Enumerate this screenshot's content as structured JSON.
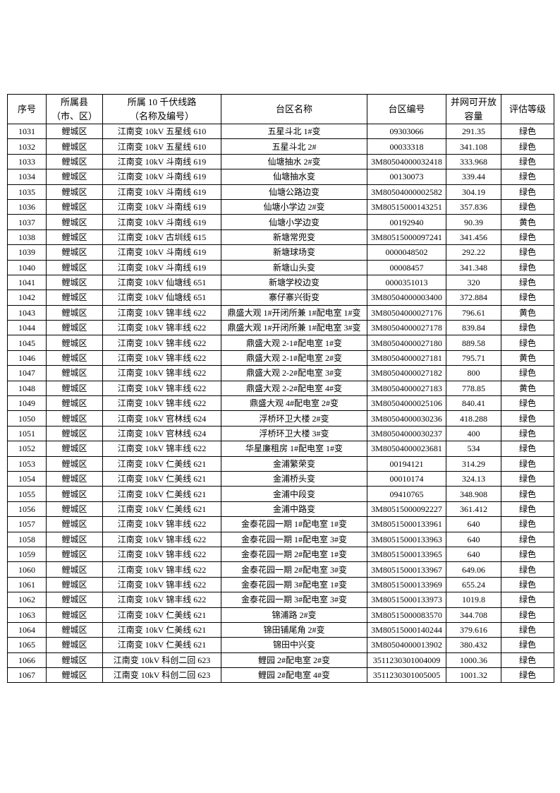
{
  "table": {
    "header": [
      [
        "序号"
      ],
      [
        "所属县",
        "（市、区）"
      ],
      [
        "所属 10 千伏线路",
        "（名称及编号）"
      ],
      [
        "台区名称"
      ],
      [
        "台区编号"
      ],
      [
        "并网可开放",
        "容量"
      ],
      [
        "评估等级"
      ]
    ],
    "rows": [
      [
        "1031",
        "鲤城区",
        "江南变 10kV 五星线 610",
        "五星斗北 1#变",
        "09303066",
        "291.35",
        "绿色"
      ],
      [
        "1032",
        "鲤城区",
        "江南变 10kV 五星线 610",
        "五星斗北 2#",
        "00033318",
        "341.108",
        "绿色"
      ],
      [
        "1033",
        "鲤城区",
        "江南变 10kV 斗南线 619",
        "仙塘抽水 2#变",
        "3M80504000032418",
        "333.968",
        "绿色"
      ],
      [
        "1034",
        "鲤城区",
        "江南变 10kV 斗南线 619",
        "仙塘抽水变",
        "00130073",
        "339.44",
        "绿色"
      ],
      [
        "1035",
        "鲤城区",
        "江南变 10kV 斗南线 619",
        "仙塘公路边变",
        "3M80504000002582",
        "304.19",
        "绿色"
      ],
      [
        "1036",
        "鲤城区",
        "江南变 10kV 斗南线 619",
        "仙塘小学边 2#变",
        "3M80515000143251",
        "357.836",
        "绿色"
      ],
      [
        "1037",
        "鲤城区",
        "江南变 10kV 斗南线 619",
        "仙塘小学边变",
        "00192940",
        "90.39",
        "黄色"
      ],
      [
        "1038",
        "鲤城区",
        "江南变 10kV 古圳线 615",
        "新塘常兜变",
        "3M80515000097241",
        "341.456",
        "绿色"
      ],
      [
        "1039",
        "鲤城区",
        "江南变 10kV 斗南线 619",
        "新塘球场变",
        "0000048502",
        "292.22",
        "绿色"
      ],
      [
        "1040",
        "鲤城区",
        "江南变 10kV 斗南线 619",
        "新塘山头变",
        "00008457",
        "341.348",
        "绿色"
      ],
      [
        "1041",
        "鲤城区",
        "江南变 10kV 仙塘线 651",
        "新塘学校边变",
        "0000351013",
        "320",
        "绿色"
      ],
      [
        "1042",
        "鲤城区",
        "江南变 10kV 仙塘线 651",
        "寨仔寨兴街变",
        "3M80504000003400",
        "372.884",
        "绿色"
      ],
      [
        "1043",
        "鲤城区",
        "江南变 10kV 锦丰线 622",
        "鼎盛大观 1#开闭所兼 1#配电室 1#变",
        "3M80504000027176",
        "796.61",
        "黄色"
      ],
      [
        "1044",
        "鲤城区",
        "江南变 10kV 锦丰线 622",
        "鼎盛大观 1#开闭所兼 1#配电室 3#变",
        "3M80504000027178",
        "839.84",
        "绿色"
      ],
      [
        "1045",
        "鲤城区",
        "江南变 10kV 锦丰线 622",
        "鼎盛大观 2-1#配电室 1#变",
        "3M80504000027180",
        "889.58",
        "绿色"
      ],
      [
        "1046",
        "鲤城区",
        "江南变 10kV 锦丰线 622",
        "鼎盛大观 2-1#配电室 2#变",
        "3M80504000027181",
        "795.71",
        "黄色"
      ],
      [
        "1047",
        "鲤城区",
        "江南变 10kV 锦丰线 622",
        "鼎盛大观 2-2#配电室 3#变",
        "3M80504000027182",
        "800",
        "绿色"
      ],
      [
        "1048",
        "鲤城区",
        "江南变 10kV 锦丰线 622",
        "鼎盛大观 2-2#配电室 4#变",
        "3M80504000027183",
        "778.85",
        "黄色"
      ],
      [
        "1049",
        "鲤城区",
        "江南变 10kV 锦丰线 622",
        "鼎盛大观 4#配电室 2#变",
        "3M80504000025106",
        "840.41",
        "绿色"
      ],
      [
        "1050",
        "鲤城区",
        "江南变 10kV 官林线 624",
        "浮桥环卫大楼 2#变",
        "3M80504000030236",
        "418.288",
        "绿色"
      ],
      [
        "1051",
        "鲤城区",
        "江南变 10kV 官林线 624",
        "浮桥环卫大楼 3#变",
        "3M80504000030237",
        "400",
        "绿色"
      ],
      [
        "1052",
        "鲤城区",
        "江南变 10kV 锦丰线 622",
        "华星廉租房 1#配电室 1#变",
        "3M80504000023681",
        "534",
        "绿色"
      ],
      [
        "1053",
        "鲤城区",
        "江南变 10kV 仁美线 621",
        "金浦繁荣变",
        "00194121",
        "314.29",
        "绿色"
      ],
      [
        "1054",
        "鲤城区",
        "江南变 10kV 仁美线 621",
        "金浦桥头变",
        "00010174",
        "324.13",
        "绿色"
      ],
      [
        "1055",
        "鲤城区",
        "江南变 10kV 仁美线 621",
        "金浦中段变",
        "09410765",
        "348.908",
        "绿色"
      ],
      [
        "1056",
        "鲤城区",
        "江南变 10kV 仁美线 621",
        "金浦中路变",
        "3M80515000092227",
        "361.412",
        "绿色"
      ],
      [
        "1057",
        "鲤城区",
        "江南变 10kV 锦丰线 622",
        "金泰花园一期 1#配电室 1#变",
        "3M80515000133961",
        "640",
        "绿色"
      ],
      [
        "1058",
        "鲤城区",
        "江南变 10kV 锦丰线 622",
        "金泰花园一期 1#配电室 3#变",
        "3M80515000133963",
        "640",
        "绿色"
      ],
      [
        "1059",
        "鲤城区",
        "江南变 10kV 锦丰线 622",
        "金泰花园一期 2#配电室 1#变",
        "3M80515000133965",
        "640",
        "绿色"
      ],
      [
        "1060",
        "鲤城区",
        "江南变 10kV 锦丰线 622",
        "金泰花园一期 2#配电室 3#变",
        "3M80515000133967",
        "649.06",
        "绿色"
      ],
      [
        "1061",
        "鲤城区",
        "江南变 10kV 锦丰线 622",
        "金泰花园一期 3#配电室 1#变",
        "3M80515000133969",
        "655.24",
        "绿色"
      ],
      [
        "1062",
        "鲤城区",
        "江南变 10kV 锦丰线 622",
        "金泰花园一期 3#配电室 3#变",
        "3M80515000133973",
        "1019.8",
        "绿色"
      ],
      [
        "1063",
        "鲤城区",
        "江南变 10kV 仁美线 621",
        "锦浦路 2#变",
        "3M80515000083570",
        "344.708",
        "绿色"
      ],
      [
        "1064",
        "鲤城区",
        "江南变 10kV 仁美线 621",
        "锦田铺尾角 2#变",
        "3M80515000140244",
        "379.616",
        "绿色"
      ],
      [
        "1065",
        "鲤城区",
        "江南变 10kV 仁美线 621",
        "锦田中兴变",
        "3M80504000013902",
        "380.432",
        "绿色"
      ],
      [
        "1066",
        "鲤城区",
        "江南变 10kV 科创二回 623",
        "鲤园 2#配电室 2#变",
        "3511230301004009",
        "1000.36",
        "绿色"
      ],
      [
        "1067",
        "鲤城区",
        "江南变 10kV 科创二回 623",
        "鲤园 2#配电室 4#变",
        "3511230301005005",
        "1001.32",
        "绿色"
      ]
    ]
  }
}
